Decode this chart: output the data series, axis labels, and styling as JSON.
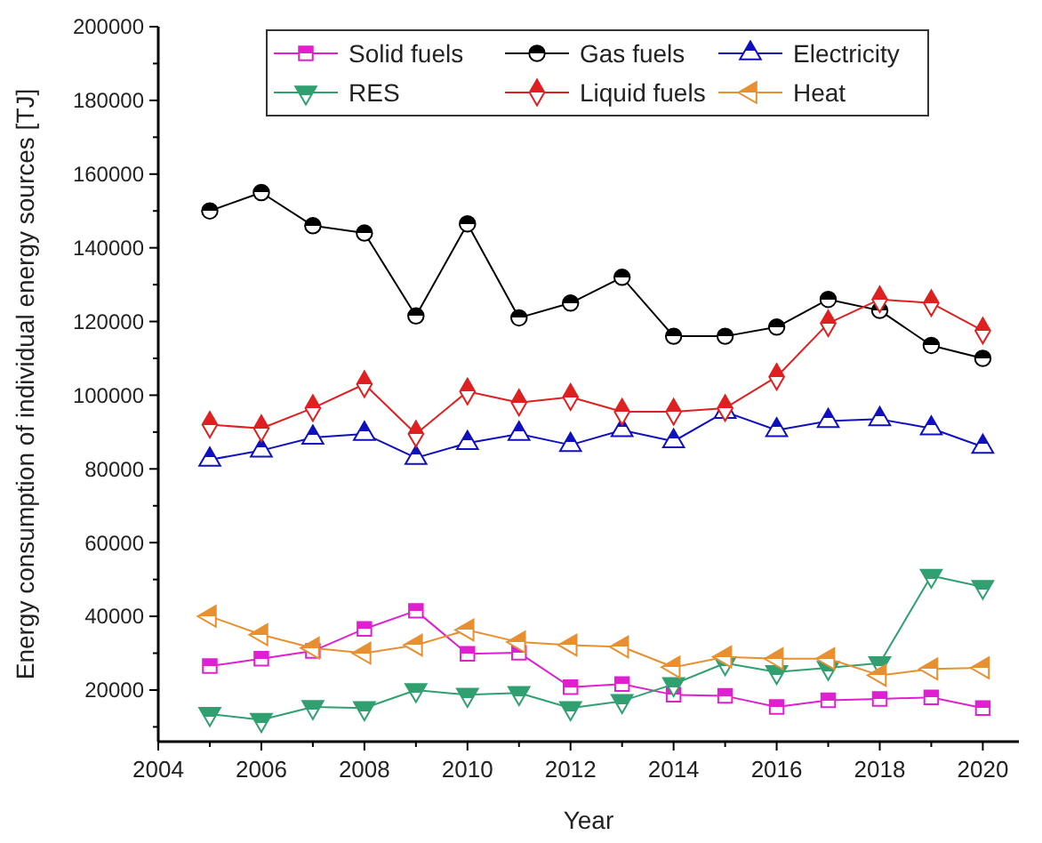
{
  "chart_data": {
    "type": "line",
    "xlabel": "Year",
    "ylabel": "Energy consumption of individual energy sources [TJ]",
    "x": [
      2005,
      2006,
      2007,
      2008,
      2009,
      2010,
      2011,
      2012,
      2013,
      2014,
      2015,
      2016,
      2017,
      2018,
      2019,
      2020
    ],
    "series": [
      {
        "name": "Solid fuels",
        "color": "#e020d0",
        "marker": "square",
        "values": [
          26500,
          28500,
          30600,
          36600,
          41500,
          29800,
          30100,
          20800,
          21600,
          18700,
          18400,
          15400,
          17200,
          17600,
          18000,
          15100
        ]
      },
      {
        "name": "Gas fuels",
        "color": "#000000",
        "marker": "circle",
        "values": [
          150000,
          155000,
          146000,
          144000,
          121500,
          146500,
          121000,
          125000,
          132000,
          116000,
          116000,
          118500,
          126000,
          123000,
          113500,
          110000
        ]
      },
      {
        "name": "Electricity",
        "color": "#1010c0",
        "marker": "triangle",
        "values": [
          82500,
          85000,
          88500,
          89500,
          83000,
          87000,
          89500,
          86500,
          90500,
          87500,
          95500,
          90500,
          93000,
          93500,
          91000,
          86000
        ]
      },
      {
        "name": "RES",
        "color": "#30a070",
        "marker": "triangle-down",
        "values": [
          13500,
          11900,
          15400,
          15100,
          20000,
          18700,
          19200,
          15100,
          17000,
          21600,
          27300,
          24900,
          26000,
          27300,
          51000,
          48000
        ]
      },
      {
        "name": "Liquid fuels",
        "color": "#e02020",
        "marker": "diamond",
        "values": [
          92000,
          91000,
          96500,
          103000,
          89500,
          101000,
          98000,
          99500,
          95500,
          95500,
          96500,
          105000,
          119500,
          126000,
          125000,
          117500
        ]
      },
      {
        "name": "Heat",
        "color": "#e89030",
        "marker": "triangle-left",
        "values": [
          40000,
          35000,
          31400,
          30000,
          32200,
          36300,
          33000,
          32200,
          31700,
          26200,
          29000,
          28500,
          28500,
          24000,
          25700,
          26000
        ]
      }
    ],
    "xlim": [
      2004,
      2020.7
    ],
    "xticks": [
      2004,
      {
        "value": 2005,
        "label": null
      },
      2006,
      {
        "value": 2007,
        "label": null
      },
      2008,
      {
        "value": 2009,
        "label": null
      },
      2010,
      {
        "value": 2011,
        "label": null
      },
      2012,
      {
        "value": 2013,
        "label": null
      },
      2014,
      {
        "value": 2015,
        "label": null
      },
      2016,
      {
        "value": 2017,
        "label": null
      },
      2018,
      {
        "value": 2019,
        "label": null
      },
      2020
    ],
    "ylim": [
      6000,
      200000
    ],
    "yticks": [
      {
        "value": 10000,
        "label": null
      },
      20000,
      {
        "value": 30000,
        "label": null
      },
      40000,
      {
        "value": 50000,
        "label": null
      },
      60000,
      {
        "value": 70000,
        "label": null
      },
      80000,
      {
        "value": 90000,
        "label": null
      },
      100000,
      {
        "value": 110000,
        "label": null
      },
      120000,
      {
        "value": 130000,
        "label": null
      },
      140000,
      {
        "value": 150000,
        "label": null
      },
      160000,
      {
        "value": 170000,
        "label": null
      },
      180000,
      {
        "value": 190000,
        "label": null
      },
      200000
    ],
    "legend": "top",
    "line_style": "solid",
    "grid": false
  }
}
